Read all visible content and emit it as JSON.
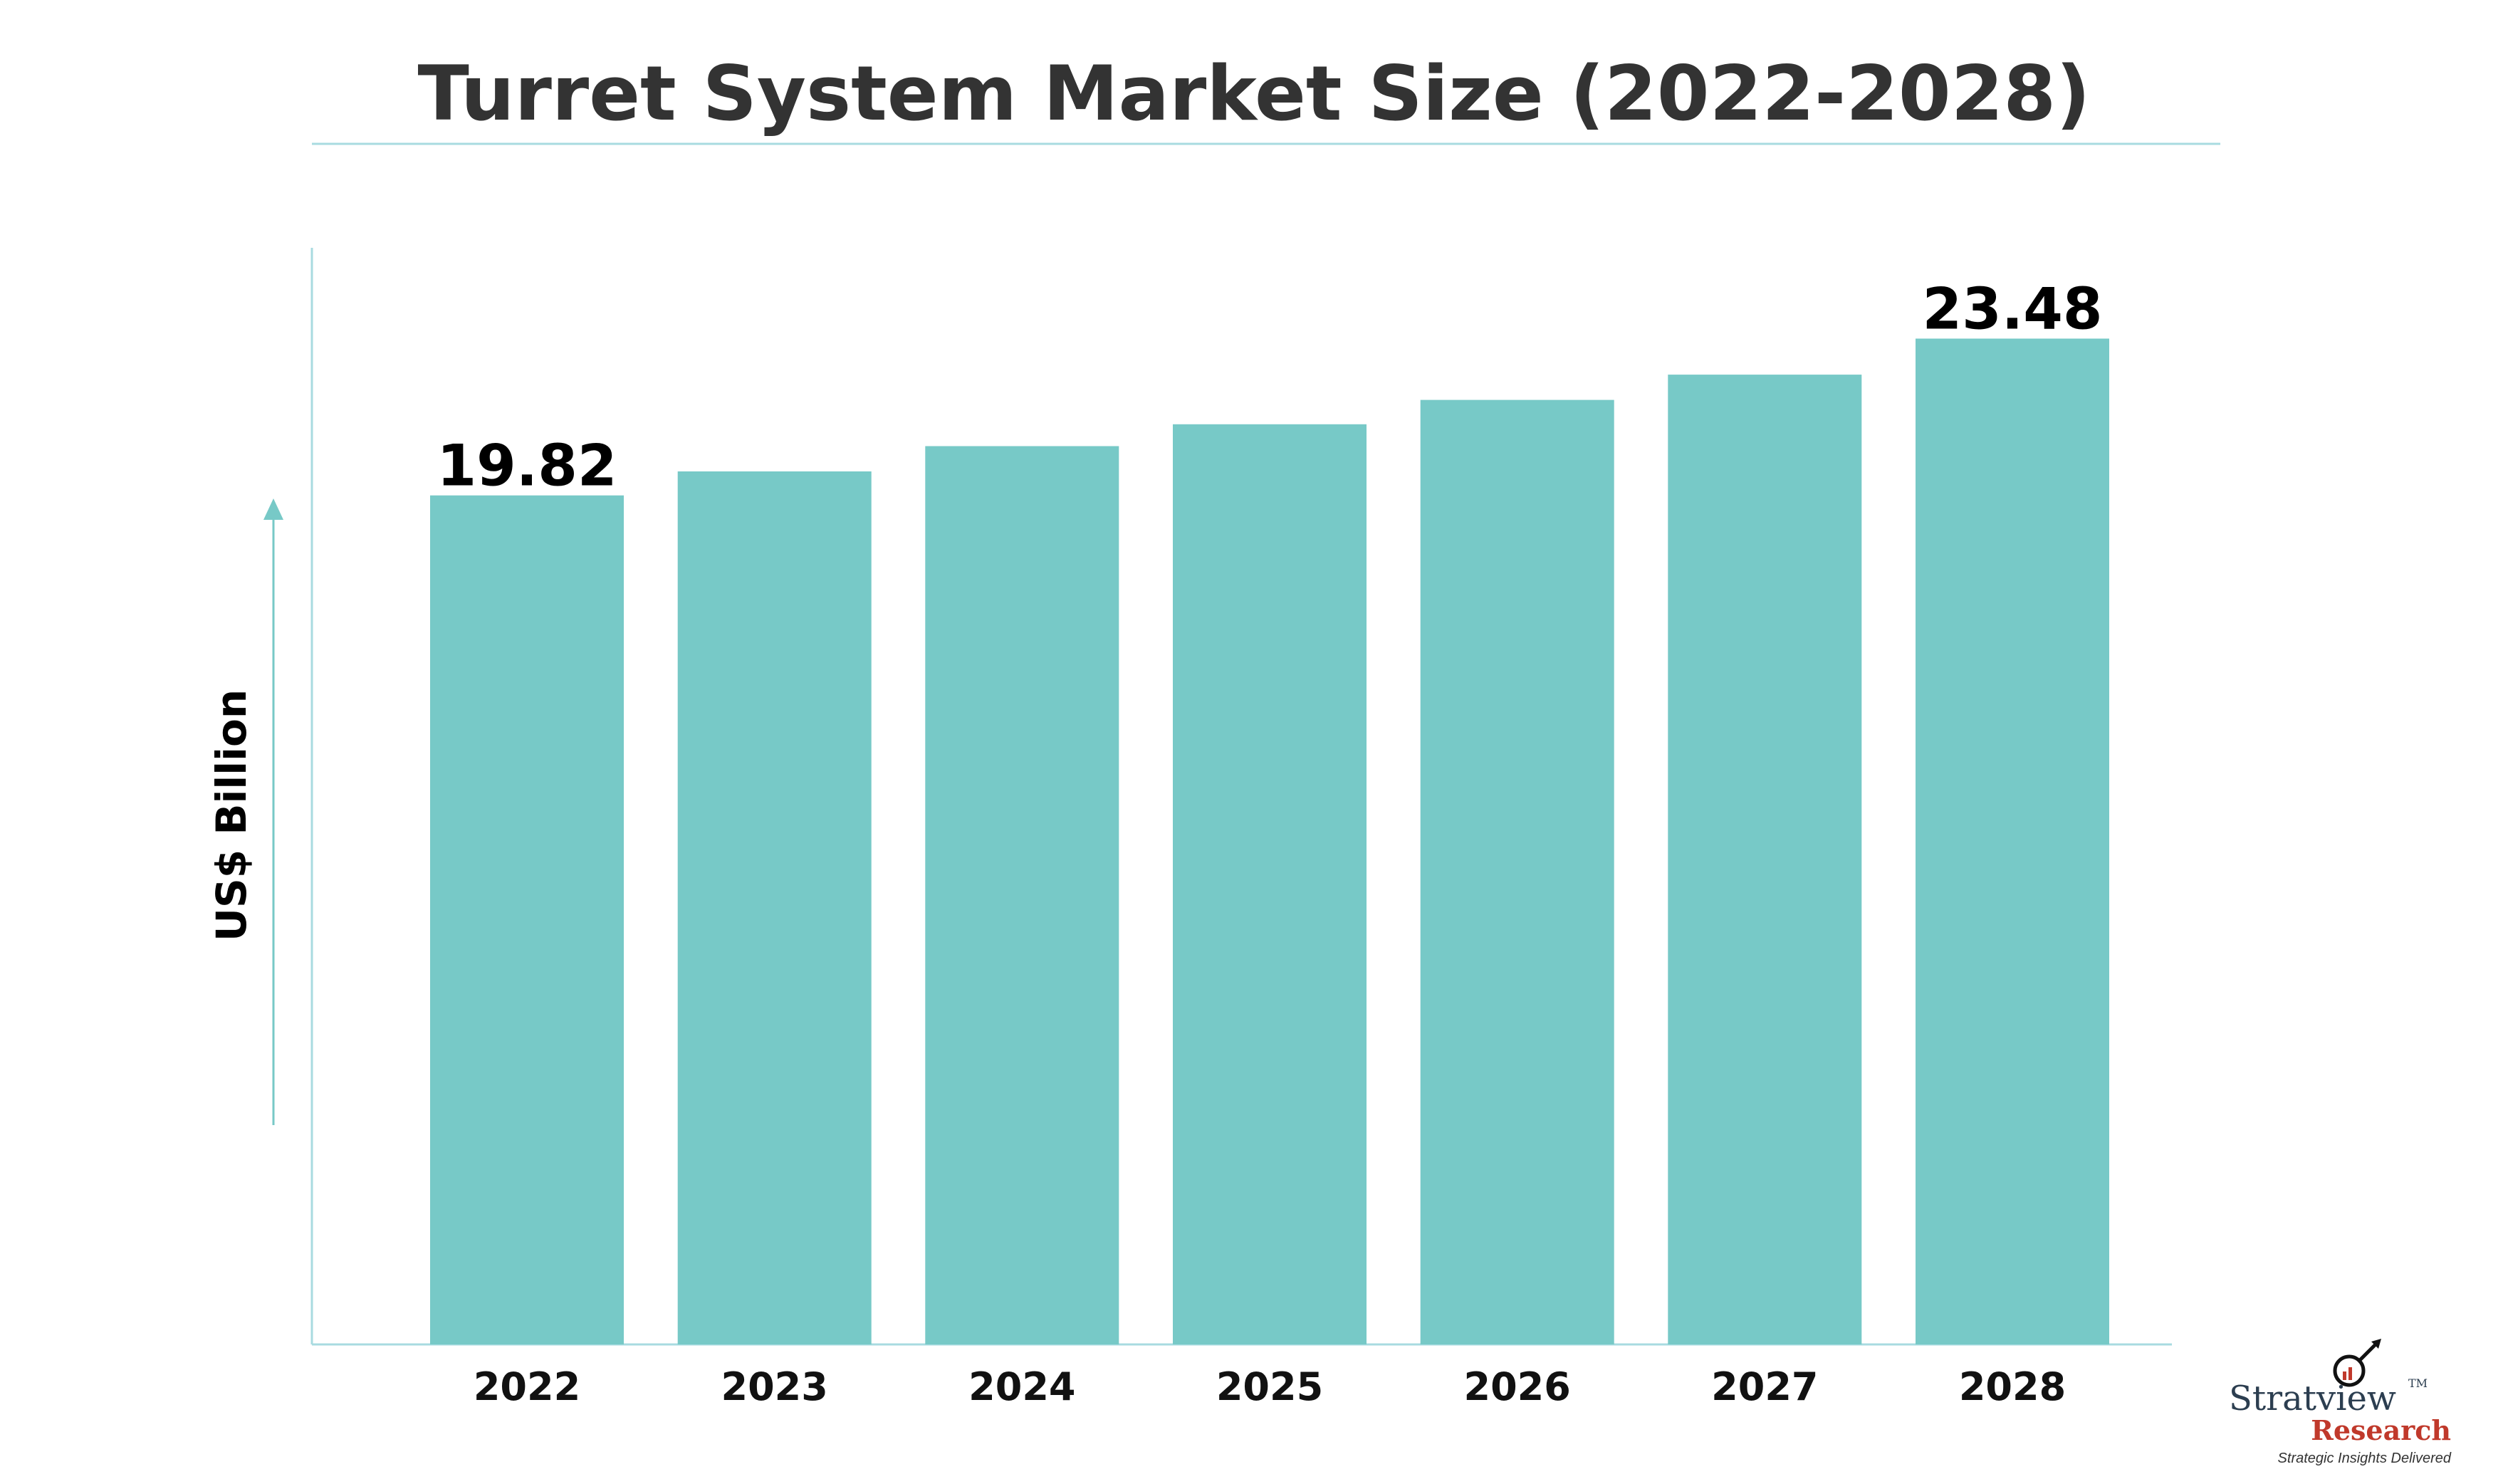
{
  "chart_data": {
    "type": "bar",
    "title": "Turret System Market Size (2022-2028)",
    "ylabel": "US$ Billion",
    "xlabel": "",
    "categories": [
      "2022",
      "2023",
      "2024",
      "2025",
      "2026",
      "2027",
      "2028"
    ],
    "values": [
      19.82,
      20.38,
      20.97,
      21.48,
      22.05,
      22.64,
      23.48
    ],
    "data_labels": [
      "19.82",
      "",
      "",
      "",
      "",
      "",
      "23.48"
    ],
    "ylim": [
      0,
      25.6
    ],
    "grid": false,
    "bar_color": "#77c9c7",
    "axis_color": "#a8dbe0",
    "arrow_color": "#77c9c7"
  },
  "logo": {
    "brand": "Stratview",
    "tm": "TM",
    "sub": "Research",
    "tagline": "Strategic Insights Delivered",
    "accent_color": "#c0392b"
  }
}
